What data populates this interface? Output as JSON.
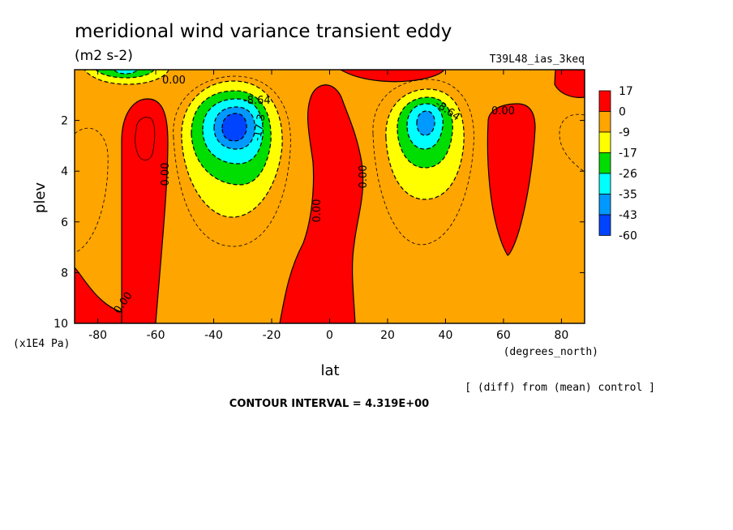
{
  "chart_data": {
    "type": "heatmap",
    "title": "meridional wind variance transient eddy",
    "units": "(m2 s-2)",
    "experiment": "T39L48_ias_3keq",
    "note": "[ (diff) from (mean) control ]",
    "contour_interval_text": "CONTOUR INTERVAL = 4.319E+00",
    "xlabel": "lat",
    "xunits": "(degrees_north)",
    "ylabel": "plev",
    "yunits": "(x1E4 Pa)",
    "xlim": [
      -88,
      88
    ],
    "ylim": [
      10,
      0
    ],
    "xticks": [
      "-80",
      "-60",
      "-40",
      "-20",
      "0",
      "20",
      "40",
      "60",
      "80"
    ],
    "xtick_values": [
      -80,
      -60,
      -40,
      -20,
      0,
      20,
      40,
      60,
      80
    ],
    "yticks": [
      "2",
      "4",
      "6",
      "8",
      "10"
    ],
    "ytick_values": [
      2,
      4,
      6,
      8,
      10
    ],
    "colorbar": {
      "labels": [
        "17",
        "0",
        "-9",
        "-17",
        "-26",
        "-35",
        "-43",
        "-60"
      ],
      "colors": [
        "#ff0000",
        "#ffa500",
        "#ffff00",
        "#00dd00",
        "#00ffff",
        "#0099ff",
        "#0044ff"
      ]
    },
    "contour_labels": [
      "0.00",
      "-8.64",
      "-17.3"
    ],
    "features": [
      {
        "kind": "min",
        "lat": -33,
        "plev": 2.4,
        "value": -60
      },
      {
        "kind": "min",
        "lat": 32,
        "plev": 2.3,
        "value": -43
      },
      {
        "kind": "max",
        "lat": -68,
        "plev": 3.5,
        "value": 17
      },
      {
        "kind": "max",
        "lat": 64,
        "plev": 3.5,
        "value": 17
      },
      {
        "kind": "max",
        "lat": -2,
        "plev": 4.5,
        "value": 17
      }
    ]
  }
}
